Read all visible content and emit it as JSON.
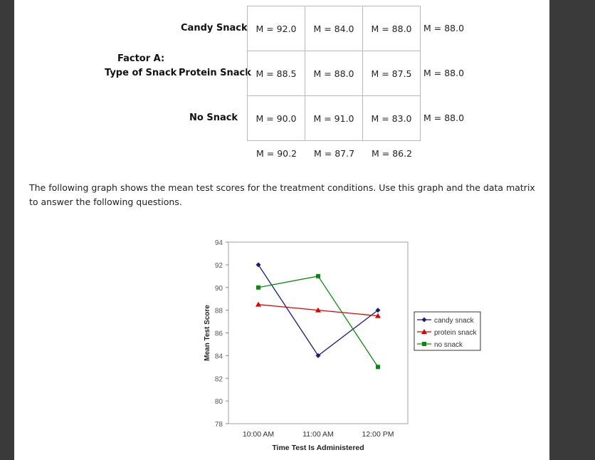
{
  "matrix": {
    "factor_label_line1": "Factor A:",
    "factor_label_line2": "Type of Snack",
    "rows": [
      {
        "label": "Candy Snack",
        "cells": [
          "M = 92.0",
          "M = 84.0",
          "M = 88.0"
        ],
        "row_mean": "M = 88.0"
      },
      {
        "label": "Protein Snack",
        "cells": [
          "M = 88.5",
          "M = 88.0",
          "M = 87.5"
        ],
        "row_mean": "M = 88.0"
      },
      {
        "label": "No Snack",
        "cells": [
          "M = 90.0",
          "M = 91.0",
          "M = 83.0"
        ],
        "row_mean": "M = 88.0"
      }
    ],
    "col_means": [
      "M = 90.2",
      "M = 87.7",
      "M = 86.2"
    ]
  },
  "paragraph": "The following graph shows the mean test scores for the treatment conditions. Use this graph and the data matrix to answer the following questions.",
  "chart_data": {
    "type": "line",
    "title": "",
    "xlabel": "Time Test Is Administered",
    "ylabel": "Mean Test Score",
    "categories": [
      "10:00 AM",
      "11:00 AM",
      "12:00 PM"
    ],
    "ylim": [
      78,
      94
    ],
    "yticks": [
      78,
      80,
      82,
      84,
      86,
      88,
      90,
      92,
      94
    ],
    "grid": false,
    "legend_position": "right",
    "series": [
      {
        "name": "candy snack",
        "values": [
          92,
          84,
          88
        ],
        "color": "#1c1c78",
        "marker": "diamond"
      },
      {
        "name": "protein snack",
        "values": [
          88.5,
          88,
          87.5
        ],
        "color": "#e00000",
        "marker": "triangle"
      },
      {
        "name": "no snack",
        "values": [
          90,
          91,
          83
        ],
        "color": "#0a8a0a",
        "marker": "square"
      }
    ]
  }
}
